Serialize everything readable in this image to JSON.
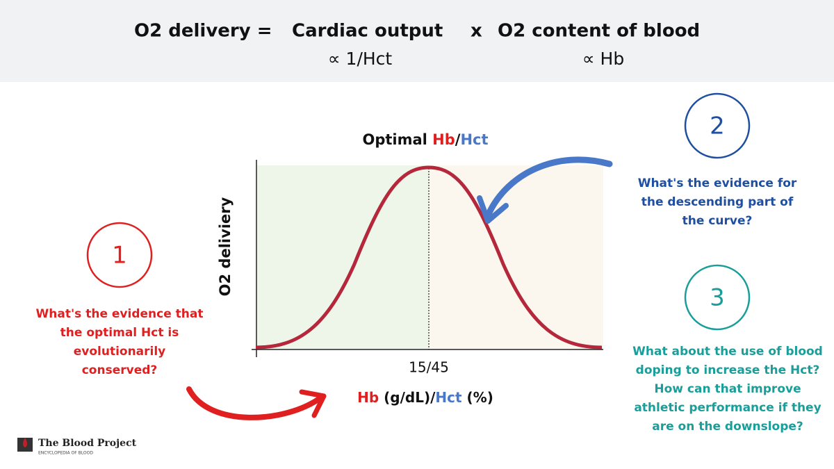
{
  "header": {
    "lhs": "O2 delivery =",
    "term1": "Cardiac output",
    "operator": "x",
    "term2": "O2 content of blood",
    "term1_relation": "∝ 1/Hct",
    "term2_relation": "∝ Hb"
  },
  "graph": {
    "title": {
      "prefix": "Optimal ",
      "hb": "Hb",
      "slash": "/",
      "hct": "Hct"
    },
    "y_label": "O2 deliviery",
    "x_tick": "15/45",
    "x_label": {
      "hb": "Hb",
      "mid": " (g/dL)/",
      "hct": "Hct",
      "unit": " (%)"
    }
  },
  "questions": [
    {
      "number": "1",
      "lines": [
        "What's the evidence that",
        "the optimal Hct is",
        "evolutionarily",
        "conserved?"
      ]
    },
    {
      "number": "2",
      "lines": [
        "What's the evidence for",
        "the descending part of",
        "the curve?"
      ]
    },
    {
      "number": "3",
      "lines": [
        "What about the use of blood",
        "doping to increase the Hct?",
        "How can that improve",
        "athletic performance if they",
        "are on the downslope?"
      ]
    }
  ],
  "logo": {
    "name": "The Blood Project",
    "tagline": "ENCYCLOPEDIA OF BLOOD"
  }
}
